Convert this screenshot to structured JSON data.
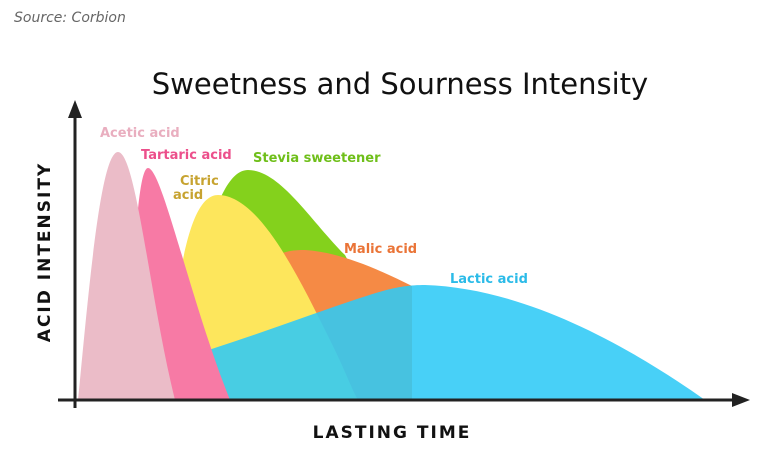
{
  "source": "Source: Corbion",
  "title": "Sweetness and Sourness Intensity",
  "y_axis_label": "ACID INTENSITY",
  "x_axis_label": "LASTING TIME",
  "curves": [
    {
      "label": [
        "Acetic acid"
      ]
    },
    {
      "label": [
        "Tartaric acid"
      ]
    },
    {
      "label": [
        "Citric",
        "acid"
      ]
    },
    {
      "label": [
        "Stevia sweetener"
      ]
    },
    {
      "label": [
        "Malic acid"
      ]
    },
    {
      "label": [
        "Lactic acid"
      ]
    }
  ]
}
